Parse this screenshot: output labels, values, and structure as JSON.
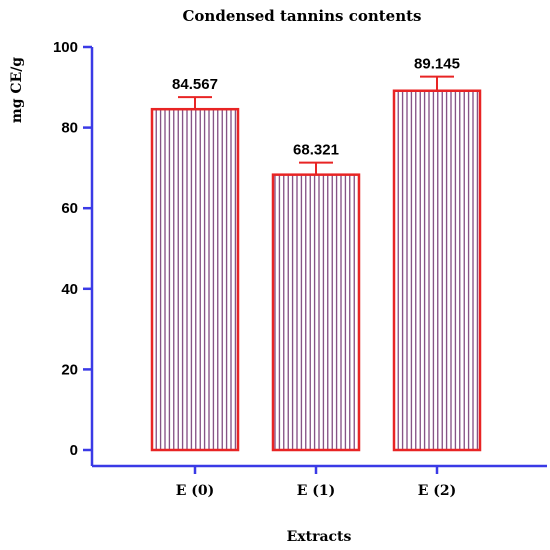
{
  "chart_data": {
    "type": "bar",
    "title": "Condensed tannins contents",
    "xlabel": "Extracts",
    "ylabel": "mg CE/g",
    "categories": [
      "E (0)",
      "E (1)",
      "E (2)"
    ],
    "values": [
      84.567,
      68.321,
      89.145
    ],
    "value_labels": [
      "84.567",
      "68.321",
      "89.145"
    ],
    "error": [
      3.0,
      3.0,
      3.5
    ],
    "ylim": [
      0,
      100
    ],
    "yticks": [
      0,
      20,
      40,
      60,
      80,
      100
    ],
    "grid": false,
    "legend": "none"
  },
  "colors": {
    "axis": "#3a3ae6",
    "bar_outline": "#e82424",
    "bar_hatch": "#6a2a6a",
    "error_bar": "#e82424"
  }
}
